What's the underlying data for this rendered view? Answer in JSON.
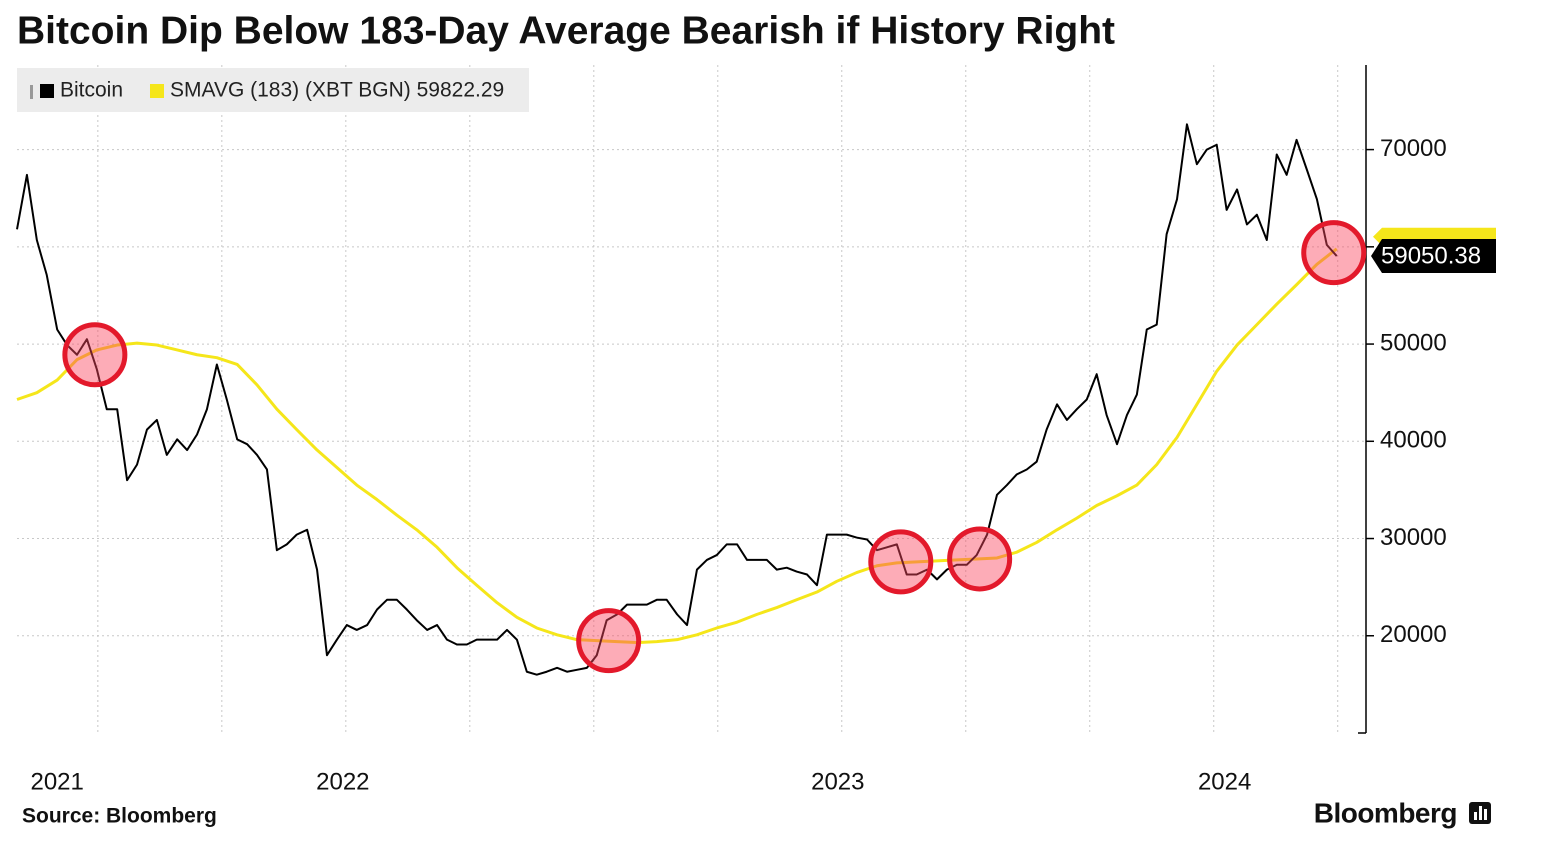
{
  "chart_data": {
    "type": "line",
    "title": "Bitcoin Dip Below 183-Day Average Bearish if History Right",
    "source": "Source: Bloomberg",
    "brand": "Bloomberg",
    "xlim": [
      2021.837,
      2024.555
    ],
    "xticks": [
      {
        "value": 2021.918,
        "label": "2021"
      },
      {
        "value": 2022.494,
        "label": "2022"
      },
      {
        "value": 2023.492,
        "label": "2023"
      },
      {
        "value": 2024.272,
        "label": "2024"
      }
    ],
    "xgrid": [
      2022,
      2022.25,
      2022.5,
      2022.75,
      2023,
      2023.25,
      2023.5,
      2023.75,
      2024,
      2024.25,
      2024.5
    ],
    "ylim": [
      10000,
      78700
    ],
    "yticks": [
      20000,
      30000,
      40000,
      50000,
      70000
    ],
    "ygrid": [
      20000,
      30000,
      40000,
      50000,
      60000,
      70000
    ],
    "grid": true,
    "y_axis_side": "right",
    "last_value": 59050.38,
    "series": [
      {
        "name": "Bitcoin",
        "color": "#000000",
        "x": [
          2021.837,
          2021.857,
          2021.877,
          2021.897,
          2021.918,
          2021.938,
          2021.958,
          2021.978,
          2021.998,
          2022.018,
          2022.039,
          2022.059,
          2022.079,
          2022.099,
          2022.119,
          2022.139,
          2022.16,
          2022.18,
          2022.2,
          2022.22,
          2022.24,
          2022.26,
          2022.281,
          2022.301,
          2022.321,
          2022.341,
          2022.361,
          2022.381,
          2022.401,
          2022.422,
          2022.442,
          2022.462,
          2022.482,
          2022.502,
          2022.522,
          2022.543,
          2022.563,
          2022.583,
          2022.603,
          2022.623,
          2022.643,
          2022.664,
          2022.684,
          2022.704,
          2022.724,
          2022.744,
          2022.764,
          2022.785,
          2022.805,
          2022.825,
          2022.845,
          2022.865,
          2022.885,
          2022.905,
          2022.926,
          2022.946,
          2022.966,
          2022.986,
          2023.006,
          2023.026,
          2023.047,
          2023.067,
          2023.087,
          2023.107,
          2023.127,
          2023.147,
          2023.168,
          2023.188,
          2023.208,
          2023.228,
          2023.248,
          2023.268,
          2023.289,
          2023.309,
          2023.329,
          2023.349,
          2023.369,
          2023.389,
          2023.409,
          2023.43,
          2023.45,
          2023.47,
          2023.49,
          2023.51,
          2023.53,
          2023.551,
          2023.571,
          2023.591,
          2023.611,
          2023.631,
          2023.651,
          2023.672,
          2023.692,
          2023.712,
          2023.732,
          2023.752,
          2023.772,
          2023.793,
          2023.813,
          2023.833,
          2023.853,
          2023.873,
          2023.893,
          2023.913,
          2023.934,
          2023.954,
          2023.974,
          2023.994,
          2024.014,
          2024.034,
          2024.055,
          2024.075,
          2024.095,
          2024.115,
          2024.135,
          2024.155,
          2024.176,
          2024.196,
          2024.216,
          2024.236,
          2024.256,
          2024.276,
          2024.297,
          2024.317,
          2024.337,
          2024.357,
          2024.377,
          2024.397,
          2024.417,
          2024.438,
          2024.458,
          2024.478,
          2024.498
        ],
        "values": [
          61800,
          67400,
          60700,
          57100,
          51500,
          49900,
          48900,
          50500,
          47400,
          43300,
          43300,
          36000,
          37600,
          41200,
          42200,
          38600,
          40200,
          39100,
          40700,
          43300,
          47900,
          44300,
          40200,
          39700,
          38600,
          37100,
          28800,
          29400,
          30400,
          30900,
          26800,
          18000,
          19600,
          21100,
          20600,
          21100,
          22700,
          23700,
          23700,
          22700,
          21600,
          20600,
          21100,
          19600,
          19100,
          19100,
          19600,
          19600,
          19600,
          20600,
          19600,
          16300,
          16000,
          16300,
          16700,
          16300,
          16500,
          16700,
          18000,
          21600,
          22200,
          23200,
          23200,
          23200,
          23700,
          23700,
          22200,
          21100,
          26800,
          27800,
          28300,
          29400,
          29400,
          27800,
          27800,
          27800,
          26800,
          27000,
          26600,
          26300,
          25200,
          30400,
          30400,
          30400,
          30100,
          29900,
          28800,
          29100,
          29400,
          26300,
          26300,
          26800,
          25800,
          26800,
          27300,
          27300,
          28300,
          30400,
          34500,
          35500,
          36600,
          37100,
          37900,
          41200,
          43800,
          42200,
          43300,
          44300,
          46900,
          42700,
          39700,
          42700,
          44800,
          51500,
          52000,
          61300,
          64900,
          72600,
          68500,
          70000,
          70500,
          63800,
          65900,
          62300,
          63300,
          60700,
          69500,
          67400,
          71000,
          67900,
          64900,
          60200,
          59050.38
        ]
      },
      {
        "name": "SMAVG (183) (XBT BGN) 59822.29",
        "color": "#f5e61a",
        "x": [
          2021.837,
          2021.877,
          2021.918,
          2021.958,
          2021.998,
          2022.039,
          2022.079,
          2022.119,
          2022.16,
          2022.2,
          2022.24,
          2022.281,
          2022.321,
          2022.361,
          2022.401,
          2022.442,
          2022.482,
          2022.522,
          2022.563,
          2022.603,
          2022.643,
          2022.684,
          2022.724,
          2022.764,
          2022.805,
          2022.845,
          2022.885,
          2022.926,
          2022.966,
          2023.006,
          2023.047,
          2023.087,
          2023.127,
          2023.168,
          2023.208,
          2023.248,
          2023.289,
          2023.329,
          2023.369,
          2023.409,
          2023.45,
          2023.49,
          2023.53,
          2023.571,
          2023.611,
          2023.651,
          2023.692,
          2023.732,
          2023.772,
          2023.813,
          2023.853,
          2023.893,
          2023.934,
          2023.974,
          2024.014,
          2024.055,
          2024.095,
          2024.135,
          2024.176,
          2024.216,
          2024.256,
          2024.297,
          2024.337,
          2024.377,
          2024.417,
          2024.458,
          2024.498
        ],
        "values": [
          44300,
          45000,
          46300,
          48400,
          49400,
          49900,
          50100,
          49900,
          49400,
          48900,
          48600,
          47900,
          45800,
          43300,
          41200,
          39100,
          37300,
          35500,
          34000,
          32400,
          30900,
          29100,
          27000,
          25200,
          23400,
          21900,
          20800,
          20100,
          19600,
          19500,
          19400,
          19300,
          19400,
          19600,
          20100,
          20800,
          21400,
          22200,
          22900,
          23700,
          24500,
          25600,
          26500,
          27200,
          27500,
          27600,
          27700,
          27800,
          27900,
          28000,
          28600,
          29600,
          30900,
          32100,
          33400,
          34400,
          35500,
          37600,
          40400,
          43800,
          47200,
          49900,
          52000,
          54100,
          56100,
          58200,
          59800
        ]
      }
    ],
    "highlights": [
      {
        "x": 2021.994,
        "y": 48900
      },
      {
        "x": 2023.03,
        "y": 19500
      },
      {
        "x": 2023.619,
        "y": 27600
      },
      {
        "x": 2023.778,
        "y": 27900
      },
      {
        "x": 2024.492,
        "y": 59400
      }
    ]
  }
}
